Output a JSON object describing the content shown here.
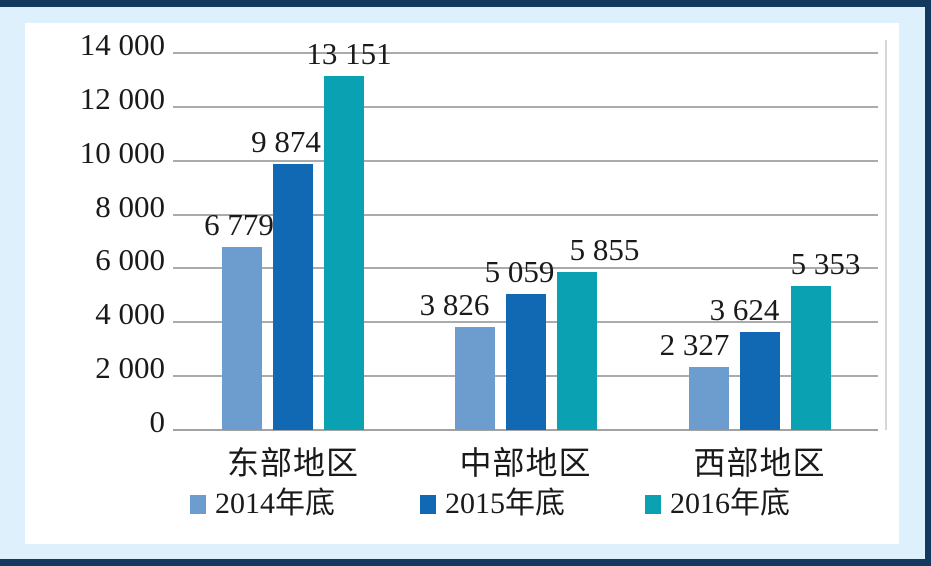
{
  "frame": {
    "background": "#ddf0fb",
    "bar_color": "#133a5e",
    "card_background": "#ffffff"
  },
  "chart_data": {
    "type": "bar",
    "title": "",
    "xlabel": "",
    "ylabel": "",
    "categories": [
      "东部地区",
      "中部地区",
      "西部地区"
    ],
    "series": [
      {
        "name": "2014年底",
        "color": "#6c9dce",
        "values": [
          6779,
          3826,
          2327
        ],
        "value_labels": [
          "6 779",
          "3 826",
          "2 327"
        ],
        "label_dx": [
          -3,
          -20,
          -14
        ]
      },
      {
        "name": "2015年底",
        "color": "#1169b3",
        "values": [
          9874,
          5059,
          3624
        ],
        "value_labels": [
          "9 874",
          "5 059",
          "3 624"
        ],
        "label_dx": [
          -7,
          -6,
          -15
        ]
      },
      {
        "name": "2016年底",
        "color": "#0aa2b2",
        "values": [
          13151,
          5855,
          5353
        ],
        "value_labels": [
          "13 151",
          "5 855",
          "5 353"
        ],
        "label_dx": [
          5,
          28,
          15
        ]
      }
    ],
    "y_axis": {
      "min": 0,
      "max": 14000,
      "step": 2000,
      "tick_labels": [
        "0",
        "2 000",
        "4 000",
        "6 000",
        "8 000",
        "10 000",
        "12 000",
        "14 000"
      ]
    },
    "grid": true,
    "gridline_color": "#ababab",
    "axisline_color": "#a3a3a3",
    "plot_border_color": "#d6d6d6",
    "text_color": "#1a1a1a",
    "legend_position": "bottom"
  }
}
